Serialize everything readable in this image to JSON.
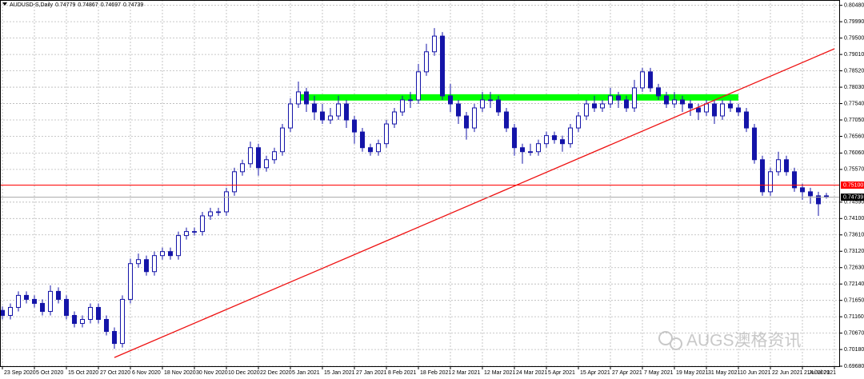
{
  "chart_data": {
    "type": "candlestick",
    "title": "AUDUSD-S,Daily",
    "categories": [
      "23 Sep 2020",
      null,
      null,
      null,
      "5 Oct 2020",
      null,
      null,
      null,
      "15 Oct 2020",
      null,
      null,
      null,
      "27 Oct 2020",
      null,
      null,
      null,
      "6 Nov 2020",
      null,
      null,
      null,
      "18 Nov 2020",
      null,
      null,
      null,
      "30 Nov 2020",
      null,
      null,
      null,
      "10 Dec 2020",
      null,
      null,
      null,
      "22 Dec 2020",
      null,
      null,
      null,
      "5 Jan 2021",
      null,
      null,
      null,
      "15 Jan 2021",
      null,
      null,
      null,
      "27 Jan 2021",
      null,
      null,
      null,
      "8 Feb 2021",
      null,
      null,
      null,
      "18 Feb 2021",
      null,
      null,
      null,
      "2 Mar 2021",
      null,
      null,
      null,
      "12 Mar 2021",
      null,
      null,
      null,
      "24 Mar 2021",
      null,
      null,
      null,
      "5 Apr 2021",
      null,
      null,
      null,
      "15 Apr 2021",
      null,
      null,
      null,
      "27 Apr 2021",
      null,
      null,
      null,
      "7 May 2021",
      null,
      null,
      null,
      "19 May 2021",
      null,
      null,
      null,
      "31 May 2021",
      null,
      null,
      null,
      "10 Jun 2021",
      null,
      null,
      null,
      "22 Jun 2021",
      null,
      null,
      null,
      "2 Jul 2021",
      null,
      null,
      null,
      "14 Jul 2021"
    ],
    "ohlc": [
      [
        0.7135,
        0.7147,
        0.7108,
        0.712
      ],
      [
        0.712,
        0.7156,
        0.7108,
        0.7144
      ],
      [
        0.7144,
        0.7192,
        0.7132,
        0.718
      ],
      [
        0.718,
        0.7192,
        0.7156,
        0.7168
      ],
      [
        0.7168,
        0.718,
        0.7144,
        0.7156
      ],
      [
        0.7156,
        0.7168,
        0.712,
        0.7132
      ],
      [
        0.7132,
        0.721,
        0.712,
        0.7192
      ],
      [
        0.7192,
        0.7204,
        0.7156,
        0.7168
      ],
      [
        0.7168,
        0.718,
        0.7108,
        0.712
      ],
      [
        0.712,
        0.7132,
        0.7084,
        0.7096
      ],
      [
        0.7096,
        0.712,
        0.7084,
        0.7108
      ],
      [
        0.7108,
        0.7156,
        0.7096,
        0.7144
      ],
      [
        0.7144,
        0.7156,
        0.7096,
        0.7108
      ],
      [
        0.7108,
        0.712,
        0.706,
        0.7072
      ],
      [
        0.7072,
        0.7084,
        0.702,
        0.7036
      ],
      [
        0.7036,
        0.718,
        0.7024,
        0.7168
      ],
      [
        0.7168,
        0.729,
        0.7156,
        0.7275
      ],
      [
        0.7275,
        0.7305,
        0.7263,
        0.7287
      ],
      [
        0.7287,
        0.7299,
        0.7239,
        0.7251
      ],
      [
        0.7251,
        0.7311,
        0.7239,
        0.7299
      ],
      [
        0.7299,
        0.7323,
        0.7287,
        0.7311
      ],
      [
        0.7311,
        0.7323,
        0.7287,
        0.7299
      ],
      [
        0.7299,
        0.7371,
        0.7287,
        0.7359
      ],
      [
        0.7359,
        0.7383,
        0.7347,
        0.7371
      ],
      [
        0.7371,
        0.7383,
        0.7359,
        0.7371
      ],
      [
        0.7371,
        0.743,
        0.7359,
        0.7418
      ],
      [
        0.7418,
        0.7442,
        0.7406,
        0.743
      ],
      [
        0.743,
        0.7442,
        0.7418,
        0.743
      ],
      [
        0.743,
        0.7502,
        0.7418,
        0.749
      ],
      [
        0.749,
        0.7562,
        0.7478,
        0.755
      ],
      [
        0.755,
        0.7586,
        0.7538,
        0.7574
      ],
      [
        0.7574,
        0.764,
        0.7562,
        0.7622
      ],
      [
        0.7622,
        0.7634,
        0.7538,
        0.7562
      ],
      [
        0.7562,
        0.7598,
        0.755,
        0.7586
      ],
      [
        0.7586,
        0.7622,
        0.7574,
        0.761
      ],
      [
        0.761,
        0.7693,
        0.7598,
        0.7681
      ],
      [
        0.7681,
        0.777,
        0.7669,
        0.7753
      ],
      [
        0.7753,
        0.782,
        0.7741,
        0.7789
      ],
      [
        0.7789,
        0.7801,
        0.7729,
        0.7753
      ],
      [
        0.7753,
        0.7777,
        0.7705,
        0.7729
      ],
      [
        0.7729,
        0.7753,
        0.7693,
        0.7705
      ],
      [
        0.7705,
        0.7741,
        0.7693,
        0.7717
      ],
      [
        0.7717,
        0.7777,
        0.7705,
        0.7753
      ],
      [
        0.7753,
        0.7765,
        0.7681,
        0.7705
      ],
      [
        0.7705,
        0.7717,
        0.7634,
        0.7669
      ],
      [
        0.7669,
        0.7681,
        0.761,
        0.7622
      ],
      [
        0.7622,
        0.7634,
        0.7598,
        0.761
      ],
      [
        0.761,
        0.7646,
        0.7598,
        0.7634
      ],
      [
        0.7634,
        0.7705,
        0.7622,
        0.7693
      ],
      [
        0.7693,
        0.7741,
        0.7681,
        0.7729
      ],
      [
        0.7729,
        0.7777,
        0.7717,
        0.7765
      ],
      [
        0.7765,
        0.7789,
        0.7741,
        0.7765
      ],
      [
        0.7765,
        0.7873,
        0.7753,
        0.7849
      ],
      [
        0.7849,
        0.7933,
        0.7837,
        0.7909
      ],
      [
        0.7909,
        0.798,
        0.7897,
        0.7956
      ],
      [
        0.7956,
        0.7968,
        0.7765,
        0.7777
      ],
      [
        0.7777,
        0.7813,
        0.7729,
        0.7753
      ],
      [
        0.7753,
        0.7765,
        0.7693,
        0.7717
      ],
      [
        0.7717,
        0.7729,
        0.7646,
        0.7681
      ],
      [
        0.7681,
        0.7753,
        0.7669,
        0.7741
      ],
      [
        0.7741,
        0.7789,
        0.7729,
        0.7765
      ],
      [
        0.7765,
        0.7789,
        0.7741,
        0.7765
      ],
      [
        0.7765,
        0.7777,
        0.7717,
        0.7729
      ],
      [
        0.7729,
        0.7741,
        0.7669,
        0.7681
      ],
      [
        0.7681,
        0.7693,
        0.7598,
        0.7622
      ],
      [
        0.7622,
        0.7634,
        0.7574,
        0.761
      ],
      [
        0.761,
        0.7634,
        0.7598,
        0.761
      ],
      [
        0.761,
        0.7646,
        0.7598,
        0.7634
      ],
      [
        0.7634,
        0.767,
        0.7622,
        0.7658
      ],
      [
        0.7658,
        0.767,
        0.7634,
        0.7646
      ],
      [
        0.7646,
        0.7658,
        0.761,
        0.7634
      ],
      [
        0.7634,
        0.7693,
        0.7622,
        0.7681
      ],
      [
        0.7681,
        0.7729,
        0.7669,
        0.7717
      ],
      [
        0.7717,
        0.7765,
        0.7705,
        0.7753
      ],
      [
        0.7753,
        0.7777,
        0.7729,
        0.7741
      ],
      [
        0.7741,
        0.7765,
        0.7729,
        0.7753
      ],
      [
        0.7753,
        0.7801,
        0.7741,
        0.7777
      ],
      [
        0.7777,
        0.7789,
        0.7741,
        0.7765
      ],
      [
        0.7765,
        0.7777,
        0.7729,
        0.7741
      ],
      [
        0.7741,
        0.7825,
        0.7729,
        0.7801
      ],
      [
        0.7801,
        0.7861,
        0.7789,
        0.7849
      ],
      [
        0.7849,
        0.7861,
        0.7789,
        0.7801
      ],
      [
        0.7801,
        0.7813,
        0.7765,
        0.7777
      ],
      [
        0.7777,
        0.7789,
        0.7741,
        0.7753
      ],
      [
        0.7753,
        0.7789,
        0.7741,
        0.7765
      ],
      [
        0.7765,
        0.7777,
        0.7729,
        0.7753
      ],
      [
        0.7753,
        0.7765,
        0.7717,
        0.7741
      ],
      [
        0.7741,
        0.7753,
        0.7705,
        0.7729
      ],
      [
        0.7729,
        0.7765,
        0.7717,
        0.7753
      ],
      [
        0.7753,
        0.7765,
        0.7693,
        0.7717
      ],
      [
        0.7717,
        0.7765,
        0.7705,
        0.7753
      ],
      [
        0.7753,
        0.7765,
        0.7729,
        0.7741
      ],
      [
        0.7741,
        0.7753,
        0.7717,
        0.7729
      ],
      [
        0.7729,
        0.7741,
        0.7669,
        0.7681
      ],
      [
        0.7681,
        0.7693,
        0.7574,
        0.7586
      ],
      [
        0.7586,
        0.7598,
        0.7478,
        0.749
      ],
      [
        0.749,
        0.7562,
        0.7478,
        0.755
      ],
      [
        0.755,
        0.761,
        0.7538,
        0.7586
      ],
      [
        0.7586,
        0.7598,
        0.7538,
        0.755
      ],
      [
        0.755,
        0.7562,
        0.749,
        0.7502
      ],
      [
        0.7502,
        0.7514,
        0.7466,
        0.749
      ],
      [
        0.749,
        0.7502,
        0.7454,
        0.7478
      ],
      [
        0.7478,
        0.749,
        0.7418,
        0.7454
      ],
      [
        0.74779,
        0.74867,
        0.74697,
        0.74739
      ],
      null
    ],
    "ylim": [
      0.6968,
      0.8064
    ],
    "yticks": [
      {
        "value": 0.8048,
        "label": "0.80480"
      },
      {
        "value": 0.7999,
        "label": "0.79990"
      },
      {
        "value": 0.795,
        "label": "0.79500"
      },
      {
        "value": 0.7901,
        "label": "0.79010"
      },
      {
        "value": 0.7852,
        "label": "0.78520"
      },
      {
        "value": 0.7803,
        "label": "0.78030"
      },
      {
        "value": 0.7754,
        "label": "0.77540"
      },
      {
        "value": 0.7705,
        "label": "0.77050"
      },
      {
        "value": 0.7656,
        "label": "0.76560"
      },
      {
        "value": 0.7606,
        "label": "0.76060"
      },
      {
        "value": 0.7557,
        "label": "0.75570"
      },
      {
        "value": 0.7459,
        "label": "0.74590"
      },
      {
        "value": 0.741,
        "label": "0.74100"
      },
      {
        "value": 0.7361,
        "label": "0.73610"
      },
      {
        "value": 0.7312,
        "label": "0.73120"
      },
      {
        "value": 0.7263,
        "label": "0.72630"
      },
      {
        "value": 0.7214,
        "label": "0.72140"
      },
      {
        "value": 0.7165,
        "label": "0.71650"
      },
      {
        "value": 0.7116,
        "label": "0.71160"
      },
      {
        "value": 0.7067,
        "label": "0.70670"
      },
      {
        "value": 0.7018,
        "label": "0.70180"
      },
      {
        "value": 0.6968,
        "label": "0.69680"
      }
    ],
    "grid": true,
    "candle_color": "#1414a8",
    "hlines": [
      {
        "value": 0.751,
        "label": "0.75100",
        "color": "#ff0000"
      }
    ],
    "price_line_color": "#a8a8a8",
    "trendline": {
      "x": [
        14,
        104
      ],
      "y": [
        0.6994,
        0.7918
      ],
      "color": "#ee1111"
    },
    "zone": {
      "x": [
        37,
        92
      ],
      "y": [
        0.7763,
        0.7782
      ],
      "color": "#00ff00"
    },
    "watermark": "AUGS澳格资讯"
  }
}
